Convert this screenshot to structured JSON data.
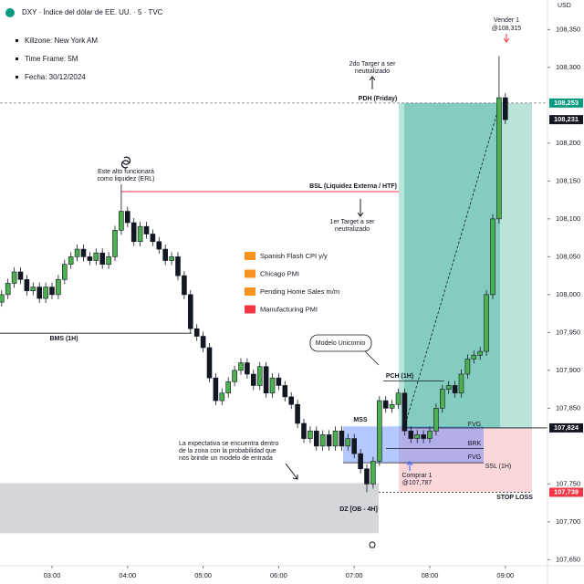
{
  "chart_data": {
    "type": "candlestick",
    "title": "DXY · Índice del dólar de EE. UU. · 5 · TVC",
    "currency": "USD",
    "info": [
      "Killzone: New York AM",
      "Time Frame: 5M",
      "Fecha: 30/12/2024"
    ],
    "events": [
      {
        "name": "Spanish Flash CPI y/y",
        "color": "#f7931e"
      },
      {
        "name": "Chicago PMI",
        "color": "#f7931e"
      },
      {
        "name": "Pending Home Sales m/m",
        "color": "#f7931e"
      },
      {
        "name": "Manufacturing PMI",
        "color": "#f23645"
      }
    ],
    "annotations": {
      "vender": [
        "Vender 1",
        "@108,315"
      ],
      "target2": [
        "2do Targer a ser",
        "neutralizado"
      ],
      "pdh": "PDH (Friday)",
      "erl": [
        "Este alto funcionará",
        "como liquidez (ERL)"
      ],
      "bsl": "BSL (Liquidez Externa / HTF)",
      "target1": [
        "1er Target a ser",
        "neutralizado"
      ],
      "bms": "BMS (1H)",
      "unicorn": "Modelo Unicornio",
      "pch": "PCH (1H)",
      "mss": "MSS",
      "fvg_top": "FVG",
      "brk": "BRK",
      "fvg_bottom": "FVG",
      "ssl": "SSL (1H)",
      "stop": "STOP LOSS",
      "comprar": [
        "Comprar 1",
        "@107,787"
      ],
      "dz": "DZ [OB - 4H]",
      "expectation": [
        "La expectativa se encuentra dentro",
        "de la zona con la probabilidad que",
        "nos brinde un modelo de entrada"
      ]
    },
    "categories": [
      null,
      null,
      null,
      null,
      null,
      null,
      null,
      null,
      "03:00",
      null,
      null,
      null,
      null,
      null,
      null,
      null,
      null,
      null,
      null,
      null,
      "04:00",
      null,
      null,
      null,
      null,
      null,
      null,
      null,
      null,
      null,
      null,
      null,
      "05:00",
      null,
      null,
      null,
      null,
      null,
      null,
      null,
      null,
      null,
      null,
      null,
      "06:00",
      null,
      null,
      null,
      null,
      null,
      null,
      null,
      null,
      null,
      null,
      null,
      "07:00",
      null,
      null,
      null,
      null,
      null,
      null,
      null,
      null,
      null,
      null,
      null,
      "08:00",
      null,
      null,
      null,
      null,
      null,
      null,
      null,
      null,
      null,
      null,
      null,
      "09:00"
    ],
    "open": [
      107.99,
      108.0,
      108.015,
      108.03,
      108.02,
      108.005,
      108.01,
      107.995,
      108.01,
      108.0,
      108.02,
      108.04,
      108.05,
      108.06,
      108.05,
      108.045,
      108.055,
      108.04,
      108.05,
      108.085,
      108.11,
      108.095,
      108.07,
      108.09,
      108.08,
      108.07,
      108.06,
      108.045,
      108.05,
      108.025,
      108.0,
      107.955,
      107.945,
      107.93,
      107.89,
      107.86,
      107.87,
      107.885,
      107.9,
      107.91,
      107.895,
      107.88,
      107.905,
      107.87,
      107.89,
      107.88,
      107.865,
      107.855,
      107.83,
      107.81,
      107.82,
      107.8,
      107.815,
      107.8,
      107.82,
      107.8,
      107.81,
      107.79,
      107.77,
      107.75,
      107.78,
      107.86,
      107.85,
      107.855,
      107.87,
      107.82,
      107.81,
      107.815,
      107.81,
      107.82,
      107.85,
      107.875,
      107.88,
      107.87,
      107.895,
      107.915,
      107.92,
      107.925,
      108.0,
      108.1,
      108.26
    ],
    "high": [
      108.006,
      108.021,
      108.036,
      108.036,
      108.026,
      108.016,
      108.016,
      108.016,
      108.016,
      108.026,
      108.046,
      108.056,
      108.066,
      108.066,
      108.056,
      108.061,
      108.061,
      108.056,
      108.091,
      108.136,
      108.116,
      108.101,
      108.096,
      108.096,
      108.086,
      108.076,
      108.066,
      108.056,
      108.056,
      108.031,
      108.006,
      107.961,
      107.951,
      107.936,
      107.896,
      107.876,
      107.891,
      107.906,
      107.916,
      107.916,
      107.901,
      107.911,
      107.911,
      107.896,
      107.896,
      107.886,
      107.871,
      107.861,
      107.836,
      107.826,
      107.826,
      107.821,
      107.821,
      107.826,
      107.826,
      107.816,
      107.816,
      107.796,
      107.776,
      107.786,
      107.866,
      107.866,
      107.861,
      107.876,
      107.876,
      107.826,
      107.821,
      107.821,
      107.826,
      107.856,
      107.881,
      107.886,
      107.886,
      107.901,
      107.921,
      107.926,
      107.931,
      108.006,
      108.106,
      108.315,
      108.266
    ],
    "low": [
      107.984,
      107.994,
      108.009,
      108.014,
      107.999,
      107.999,
      107.989,
      107.989,
      107.994,
      107.994,
      108.014,
      108.034,
      108.044,
      108.044,
      108.039,
      108.039,
      108.034,
      108.034,
      108.044,
      108.079,
      108.089,
      108.064,
      108.064,
      108.074,
      108.064,
      108.054,
      108.039,
      108.039,
      108.019,
      107.994,
      107.949,
      107.939,
      107.924,
      107.884,
      107.854,
      107.854,
      107.864,
      107.879,
      107.894,
      107.889,
      107.874,
      107.874,
      107.864,
      107.864,
      107.874,
      107.859,
      107.849,
      107.824,
      107.804,
      107.804,
      107.794,
      107.794,
      107.794,
      107.794,
      107.794,
      107.794,
      107.784,
      107.764,
      107.739,
      107.744,
      107.774,
      107.844,
      107.844,
      107.849,
      107.814,
      107.804,
      107.804,
      107.804,
      107.804,
      107.814,
      107.844,
      107.869,
      107.864,
      107.864,
      107.889,
      107.909,
      107.914,
      107.919,
      107.994,
      108.094,
      108.225
    ],
    "close": [
      108.0,
      108.015,
      108.03,
      108.02,
      108.005,
      108.01,
      107.995,
      108.01,
      108.0,
      108.02,
      108.04,
      108.05,
      108.06,
      108.05,
      108.045,
      108.055,
      108.04,
      108.05,
      108.085,
      108.11,
      108.095,
      108.07,
      108.09,
      108.08,
      108.07,
      108.06,
      108.045,
      108.05,
      108.025,
      108.0,
      107.955,
      107.945,
      107.93,
      107.89,
      107.86,
      107.87,
      107.885,
      107.9,
      107.91,
      107.895,
      107.88,
      107.905,
      107.87,
      107.89,
      107.88,
      107.865,
      107.855,
      107.83,
      107.81,
      107.82,
      107.8,
      107.815,
      107.8,
      107.82,
      107.8,
      107.81,
      107.79,
      107.77,
      107.75,
      107.78,
      107.86,
      107.85,
      107.855,
      107.87,
      107.82,
      107.81,
      107.815,
      107.81,
      107.82,
      107.85,
      107.875,
      107.88,
      107.87,
      107.895,
      107.915,
      107.92,
      107.925,
      108.0,
      108.1,
      108.26,
      108.231
    ],
    "up_color": "#4caf50",
    "down_color": "#131722",
    "ylim": [
      107.642,
      108.389
    ],
    "yticks": [
      {
        "value": 108.35,
        "label": "108,350"
      },
      {
        "value": 108.3,
        "label": "108,300"
      },
      {
        "value": 108.2,
        "label": "108,200"
      },
      {
        "value": 108.15,
        "label": "108,150"
      },
      {
        "value": 108.1,
        "label": "108,100"
      },
      {
        "value": 108.05,
        "label": "108,050"
      },
      {
        "value": 108.0,
        "label": "108,000"
      },
      {
        "value": 107.95,
        "label": "107,950"
      },
      {
        "value": 107.9,
        "label": "107,900"
      },
      {
        "value": 107.85,
        "label": "107,850"
      },
      {
        "value": 107.75,
        "label": "107,750"
      },
      {
        "value": 107.7,
        "label": "107,700"
      },
      {
        "value": 107.65,
        "label": "107,650"
      }
    ],
    "price_labels": [
      {
        "value": 108.253,
        "label": "108,253",
        "color": "#089981"
      },
      {
        "value": 108.231,
        "label": "108,231",
        "color": "#131722"
      },
      {
        "value": 107.824,
        "label": "107,824",
        "color": "#131722"
      },
      {
        "value": 107.739,
        "label": "107,739",
        "color": "#f23645"
      }
    ],
    "levels": {
      "bsl": 108.136,
      "bms": 107.949,
      "pch": 107.886,
      "fvg_top": 107.826,
      "brk": 107.797,
      "fvg_bottom": 107.778,
      "dz_top": 107.751,
      "dz_bottom": 107.685
    }
  }
}
